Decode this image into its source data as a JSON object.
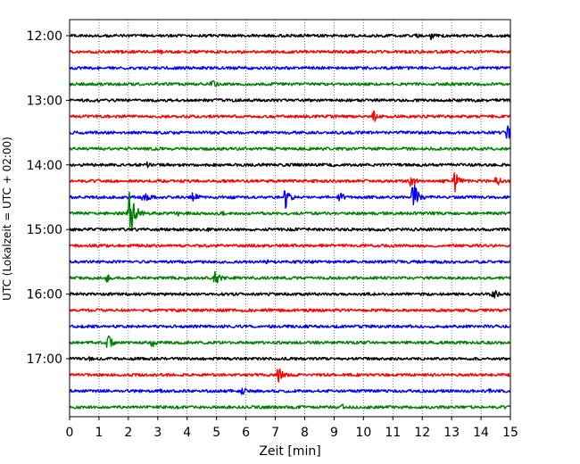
{
  "chart_data": {
    "type": "line",
    "title": "",
    "xlabel": "Zeit  [min]",
    "ylabel": "UTC (Lokalzeit = UTC + 02:00)",
    "xlim": [
      0,
      15
    ],
    "x_ticks": [
      0,
      1,
      2,
      3,
      4,
      5,
      6,
      7,
      8,
      9,
      10,
      11,
      12,
      13,
      14,
      15
    ],
    "y_ticks": [
      "12:00",
      "13:00",
      "14:00",
      "15:00",
      "16:00",
      "17:00"
    ],
    "grid": "vertical dotted",
    "legend": "none",
    "trace_colors": [
      "#000000",
      "#ff0000",
      "#0000ff",
      "#008000"
    ],
    "trace_interval_minutes": 15,
    "first_trace": "12:00",
    "traces": [
      {
        "start": "12:00",
        "color": "#000000",
        "events": [
          {
            "t": 12.3,
            "amp": 5
          },
          {
            "t": 11.8,
            "amp": 3
          }
        ]
      },
      {
        "start": "12:15",
        "color": "#ff0000",
        "events": [
          {
            "t": 3.1,
            "amp": 3
          }
        ]
      },
      {
        "start": "12:30",
        "color": "#0000ff",
        "events": []
      },
      {
        "start": "12:45",
        "color": "#008000",
        "events": [
          {
            "t": 4.85,
            "amp": 5
          }
        ]
      },
      {
        "start": "13:00",
        "color": "#000000",
        "events": []
      },
      {
        "start": "13:15",
        "color": "#ff0000",
        "events": [
          {
            "t": 10.35,
            "amp": 7
          }
        ]
      },
      {
        "start": "13:30",
        "color": "#0000ff",
        "events": [
          {
            "t": 14.9,
            "amp": 9
          }
        ]
      },
      {
        "start": "13:45",
        "color": "#008000",
        "events": []
      },
      {
        "start": "14:00",
        "color": "#000000",
        "events": [
          {
            "t": 2.65,
            "amp": 4
          }
        ]
      },
      {
        "start": "14:15",
        "color": "#ff0000",
        "events": [
          {
            "t": 11.6,
            "amp": 8
          },
          {
            "t": 13.1,
            "amp": 14
          },
          {
            "t": 14.5,
            "amp": 8
          },
          {
            "t": 12.7,
            "amp": 4
          }
        ]
      },
      {
        "start": "14:30",
        "color": "#0000ff",
        "events": [
          {
            "t": 2.5,
            "amp": 12
          },
          {
            "t": 4.2,
            "amp": 7
          },
          {
            "t": 7.35,
            "amp": 13
          },
          {
            "t": 9.2,
            "amp": 6
          },
          {
            "t": 11.7,
            "amp": 18
          },
          {
            "t": 5.5,
            "amp": 3
          }
        ]
      },
      {
        "start": "14:45",
        "color": "#008000",
        "events": [
          {
            "t": 2.05,
            "amp": 28
          },
          {
            "t": 3.7,
            "amp": 3
          },
          {
            "t": 5.15,
            "amp": 4
          }
        ]
      },
      {
        "start": "15:00",
        "color": "#000000",
        "events": [
          {
            "t": 4.7,
            "amp": 3
          }
        ]
      },
      {
        "start": "15:15",
        "color": "#ff0000",
        "events": []
      },
      {
        "start": "15:30",
        "color": "#0000ff",
        "events": [
          {
            "t": 6.7,
            "amp": 3
          }
        ]
      },
      {
        "start": "15:45",
        "color": "#008000",
        "events": [
          {
            "t": 1.25,
            "amp": 6
          },
          {
            "t": 4.95,
            "amp": 9
          },
          {
            "t": 3.9,
            "amp": 3
          }
        ]
      },
      {
        "start": "16:00",
        "color": "#000000",
        "events": [
          {
            "t": 14.4,
            "amp": 7
          }
        ]
      },
      {
        "start": "16:15",
        "color": "#ff0000",
        "events": []
      },
      {
        "start": "16:30",
        "color": "#0000ff",
        "events": []
      },
      {
        "start": "16:45",
        "color": "#008000",
        "events": [
          {
            "t": 1.3,
            "amp": 9
          },
          {
            "t": 2.8,
            "amp": 6
          },
          {
            "t": 3.9,
            "amp": 4
          }
        ]
      },
      {
        "start": "17:00",
        "color": "#000000",
        "events": [
          {
            "t": 0.7,
            "amp": 4
          }
        ]
      },
      {
        "start": "17:15",
        "color": "#ff0000",
        "events": [
          {
            "t": 7.1,
            "amp": 9
          },
          {
            "t": 12.4,
            "amp": 3
          }
        ]
      },
      {
        "start": "17:30",
        "color": "#0000ff",
        "events": [
          {
            "t": 5.85,
            "amp": 6
          },
          {
            "t": 3.1,
            "amp": 3
          },
          {
            "t": 14.3,
            "amp": 3
          }
        ]
      },
      {
        "start": "17:45",
        "color": "#008000",
        "events": [
          {
            "t": 9.25,
            "amp": 4
          }
        ]
      }
    ]
  }
}
